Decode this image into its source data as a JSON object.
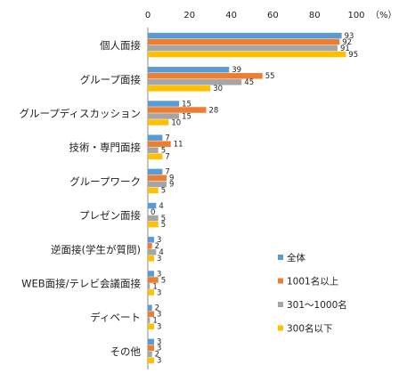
{
  "chart_data": {
    "type": "bar",
    "orientation": "horizontal",
    "unit_label": "（%）",
    "xlim": [
      0,
      100
    ],
    "x_ticks": [
      0,
      20,
      40,
      60,
      80,
      100
    ],
    "grid": false,
    "legend_position": "right",
    "categories": [
      "個人面接",
      "グループ面接",
      "グループディスカッション",
      "技術・専門面接",
      "グループワーク",
      "プレゼン面接",
      "逆面接(学生が質問)",
      "WEB面接/テレビ会議面接",
      "ディベート",
      "その他"
    ],
    "series": [
      {
        "name": "全体",
        "color": "#5B9BD5",
        "values": [
          93,
          39,
          15,
          7,
          7,
          4,
          3,
          3,
          2,
          3
        ]
      },
      {
        "name": "1001名以上",
        "color": "#ED7D31",
        "values": [
          92,
          55,
          28,
          11,
          9,
          0,
          2,
          5,
          3,
          3
        ]
      },
      {
        "name": "301～1000名",
        "color": "#A5A5A5",
        "values": [
          91,
          45,
          15,
          5,
          9,
          5,
          4,
          1,
          1,
          2
        ]
      },
      {
        "name": "300名以下",
        "color": "#FFC000",
        "values": [
          95,
          30,
          10,
          7,
          5,
          5,
          3,
          3,
          3,
          3
        ]
      }
    ]
  }
}
